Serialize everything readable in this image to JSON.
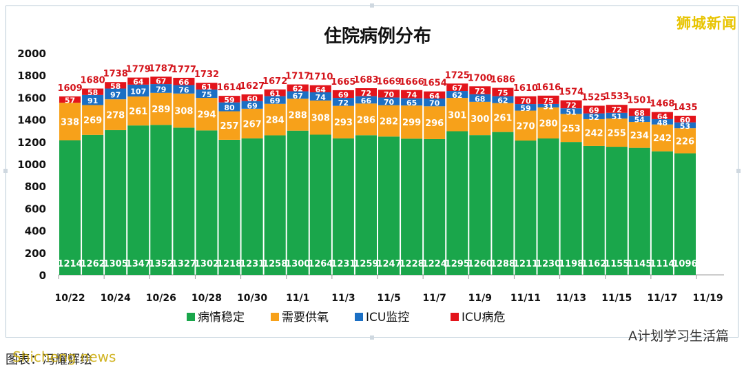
{
  "watermark": "狮城新闻",
  "caption": "图表：冯耀辉绘",
  "caption_mark": "Shicheng news",
  "wechat_source": "A计划学习生活篇",
  "chart_data": {
    "type": "bar",
    "stacked": true,
    "title": "住院病例分布",
    "ylim": [
      0,
      2000
    ],
    "yticks": [
      0,
      200,
      400,
      600,
      800,
      1000,
      1200,
      1400,
      1600,
      1800,
      2000
    ],
    "x_tick_labels": [
      "10/22",
      "10/24",
      "10/26",
      "10/28",
      "10/30",
      "11/1",
      "11/3",
      "11/5",
      "11/7",
      "11/9",
      "11/11",
      "11/13",
      "11/15",
      "11/17",
      "11/19"
    ],
    "categories": [
      "10/22",
      "10/23",
      "10/24",
      "10/25",
      "10/26",
      "10/27",
      "10/28",
      "10/29",
      "10/30",
      "10/31",
      "11/1",
      "11/2",
      "11/3",
      "11/4",
      "11/5",
      "11/6",
      "11/7",
      "11/8",
      "11/9",
      "11/10",
      "11/11",
      "11/12",
      "11/13",
      "11/14",
      "11/15",
      "11/16",
      "11/17",
      "11/18"
    ],
    "series": [
      {
        "name": "病情稳定",
        "color": "#1aa64b",
        "values": [
          1214,
          1262,
          1305,
          1347,
          1352,
          1327,
          1302,
          1218,
          1231,
          1258,
          1300,
          1264,
          1231,
          1259,
          1247,
          1228,
          1224,
          1295,
          1260,
          1288,
          1211,
          1230,
          1198,
          1162,
          1155,
          1145,
          1114,
          1096
        ]
      },
      {
        "name": "需要供氧",
        "color": "#f7a11a",
        "values": [
          338,
          269,
          278,
          261,
          289,
          308,
          294,
          257,
          267,
          284,
          288,
          308,
          293,
          286,
          282,
          299,
          296,
          301,
          300,
          261,
          270,
          280,
          253,
          242,
          255,
          234,
          242,
          226
        ]
      },
      {
        "name": "ICU监控",
        "color": "#1b6fc4",
        "values": [
          null,
          91,
          97,
          107,
          79,
          76,
          75,
          80,
          69,
          69,
          67,
          74,
          72,
          66,
          70,
          65,
          70,
          62,
          68,
          62,
          59,
          31,
          51,
          52,
          51,
          54,
          48,
          53
        ]
      },
      {
        "name": "ICU病危",
        "color": "#e3141b",
        "values": [
          57,
          58,
          58,
          64,
          67,
          66,
          61,
          59,
          60,
          61,
          62,
          64,
          69,
          72,
          70,
          74,
          64,
          67,
          72,
          75,
          70,
          75,
          72,
          69,
          72,
          68,
          64,
          60
        ]
      }
    ],
    "totals": [
      1609,
      1680,
      1738,
      1779,
      1787,
      1777,
      1732,
      1614,
      1627,
      1672,
      1717,
      1710,
      1665,
      1683,
      1669,
      1666,
      1654,
      1725,
      1700,
      1686,
      1610,
      1616,
      1574,
      1525,
      1533,
      1501,
      1468,
      1435
    ]
  }
}
